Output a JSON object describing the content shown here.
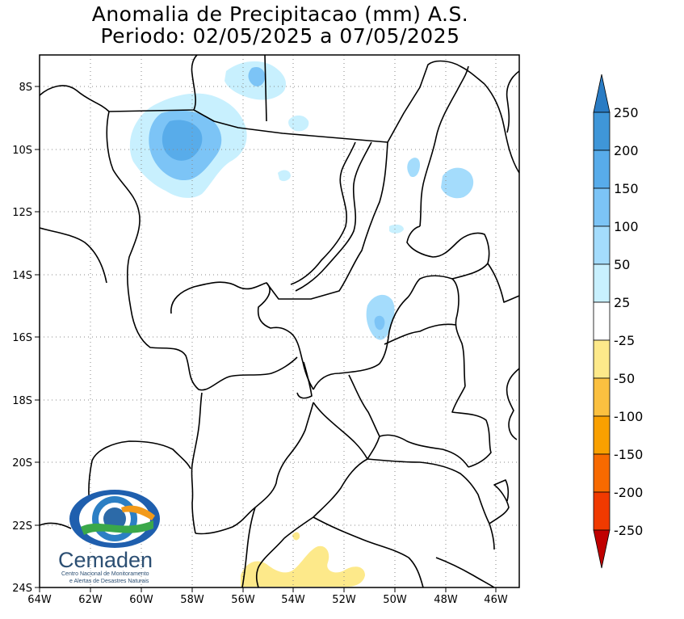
{
  "title": {
    "line1": "Anomalia de Precipitacao (mm) A.S.",
    "line2": "Periodo: 02/05/2025 a 07/05/2025"
  },
  "map": {
    "lon_range": [
      -64,
      -45
    ],
    "lat_range": [
      -24,
      -7
    ],
    "lon_ticks": [
      "64W",
      "62W",
      "60W",
      "58W",
      "56W",
      "54W",
      "52W",
      "50W",
      "48W",
      "46W"
    ],
    "lat_ticks": [
      "8S",
      "10S",
      "12S",
      "14S",
      "16S",
      "18S",
      "20S",
      "22S",
      "24S"
    ],
    "gridlines": "dotted"
  },
  "colorbar": {
    "labels": [
      "250",
      "200",
      "150",
      "100",
      "50",
      "25",
      "-25",
      "-50",
      "-100",
      "-150",
      "-200",
      "-250"
    ],
    "colors": {
      "pos_250": "#2a7cc4",
      "pos_200": "#3f96d8",
      "pos_150": "#58acea",
      "pos_100": "#7cc4f6",
      "pos_50": "#a4dcfc",
      "pos_25": "#c8f0fe",
      "neutral": "#ffffff",
      "neg_25": "#fde98a",
      "neg_50": "#fbc040",
      "neg_100": "#f9a000",
      "neg_150": "#f76a00",
      "neg_200": "#f03a00",
      "neg_250": "#c00000"
    }
  },
  "logo": {
    "name": "Cemaden",
    "subtitle_line1": "Centro Nacional de Monitoramento",
    "subtitle_line2": "e Alertas de Desastres Naturais"
  }
}
